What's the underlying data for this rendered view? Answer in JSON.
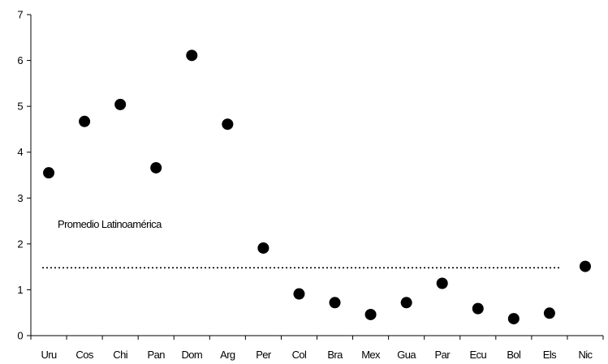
{
  "chart_data": {
    "type": "scatter",
    "categories": [
      "Uru",
      "Cos",
      "Chi",
      "Pan",
      "Dom",
      "Arg",
      "Per",
      "Col",
      "Bra",
      "Mex",
      "Gua",
      "Par",
      "Ecu",
      "Bol",
      "Els",
      "Nic"
    ],
    "values": [
      3.55,
      4.67,
      5.04,
      3.66,
      6.11,
      4.61,
      1.91,
      0.91,
      0.72,
      0.46,
      0.72,
      1.14,
      0.59,
      0.37,
      0.49,
      1.51
    ],
    "y_ticks": [
      "0",
      "1",
      "2",
      "3",
      "4",
      "5",
      "6",
      "7"
    ],
    "ylim": [
      0,
      7
    ],
    "reference_line": {
      "label": "Promedio Latinoamérica",
      "value": 1.48,
      "style": "dotted"
    },
    "title": "",
    "xlabel": "",
    "ylabel": "",
    "grid": false,
    "marker_color": "#000000"
  }
}
